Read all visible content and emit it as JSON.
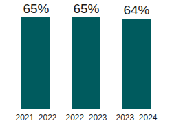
{
  "chart_data": {
    "type": "bar",
    "categories": [
      "2021–2022",
      "2022–2023",
      "2023–2024"
    ],
    "values": [
      65,
      65,
      64
    ],
    "value_labels": [
      "65%",
      "65%",
      "64%"
    ],
    "data_labels": true,
    "color": "#005b5e",
    "ylim": [
      0,
      65
    ],
    "tick_labels": "x"
  }
}
